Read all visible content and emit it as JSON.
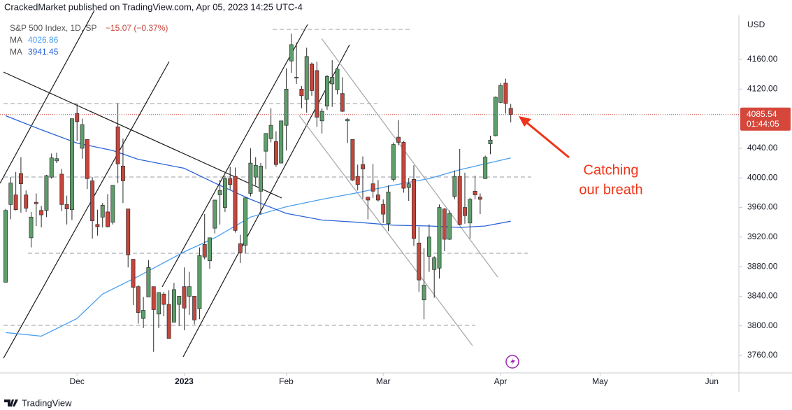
{
  "header": "CrackedMarket published on TradingView.com, Apr 05, 2023 14:25 UTC-4",
  "footer": "TradingView",
  "chart_data": {
    "type": "candlestick",
    "symbol": "S&P 500 Index, 1D, SP",
    "change": "−15.07 (−0.37%)",
    "currency": "USD",
    "last_price": 4085.54,
    "last_price_label": "4085.54",
    "countdown": "01:44:05",
    "annotation": [
      "Catching",
      "our breath"
    ],
    "up_color": "#5d9e6b",
    "down_color": "#c5463c",
    "xlim": [
      -1.1,
      143.7
    ],
    "xticks": [
      {
        "value": 14,
        "label": "Dec"
      },
      {
        "value": 35,
        "label": "2023",
        "bold": true
      },
      {
        "value": 55,
        "label": "Feb"
      },
      {
        "value": 74,
        "label": "Mar"
      },
      {
        "value": 97,
        "label": "Apr"
      },
      {
        "value": 116.5,
        "label": "May"
      },
      {
        "value": 138.4,
        "label": "Jun"
      }
    ],
    "ylim": [
      3736.4,
      4219.6
    ],
    "yticks": [
      {
        "value": 3760,
        "label": "3760.00"
      },
      {
        "value": 3800,
        "label": "3800.00"
      },
      {
        "value": 3840,
        "label": "3840.00"
      },
      {
        "value": 3880,
        "label": "3880.00"
      },
      {
        "value": 3920,
        "label": "3920.00"
      },
      {
        "value": 3960,
        "label": "3960.00"
      },
      {
        "value": 4000,
        "label": "4000.00"
      },
      {
        "value": 4040,
        "label": "4040.00"
      },
      {
        "value": 4120,
        "label": "4120.00"
      },
      {
        "value": 4160,
        "label": "4160.00"
      }
    ],
    "open": [
      3859,
      3964,
      3977,
      4006,
      3977,
      3919,
      3967,
      3956,
      3956,
      4001,
      4023,
      4005,
      3964,
      3957,
      4087,
      4040,
      4052,
      3996,
      3937,
      3947,
      3954,
      3940,
      4069,
      4016,
      3958,
      3890,
      3853,
      3810,
      3839,
      3853,
      3816,
      3843,
      3829,
      3805,
      3829,
      3853,
      3840,
      3840,
      3823,
      3910,
      3888,
      3932,
      3977,
      3960,
      3999,
      4002,
      3911,
      3909,
      3979,
      4001,
      3982,
      4036,
      4053,
      4049,
      4020,
      4071,
      4158,
      4136,
      4120,
      4106,
      4154,
      4145,
      4077,
      4097,
      4127,
      4119,
      4114,
      4077,
      4052,
      4002,
      4018,
      3974,
      3992,
      3977,
      3964,
      3938,
      3998,
      4055,
      4048,
      3987,
      3998,
      3912,
      3835,
      3894,
      3876,
      3878,
      3958,
      3917,
      3975,
      4002,
      3960,
      3939,
      3982,
      3974,
      3999,
      4046,
      4057,
      4102,
      4128,
      4094
    ],
    "high": [
      3958,
      4001,
      4008,
      4028,
      3983,
      3954,
      3979,
      3962,
      4004,
      4033,
      4034,
      4012,
      3976,
      4080,
      4100,
      4080,
      4052,
      4001,
      3957,
      3966,
      3978,
      3990,
      4101,
      4053,
      3958,
      3890,
      3855,
      3839,
      3889,
      3853,
      3845,
      3846,
      3848,
      3858,
      3840,
      3879,
      3873,
      3840,
      3906,
      3951,
      3919,
      3970,
      3997,
      4003,
      4015,
      4014,
      3923,
      3973,
      4040,
      4028,
      4020,
      4060,
      4094,
      4063,
      4077,
      4148,
      4195,
      4183,
      4124,
      4176,
      4156,
      4157,
      4094,
      4139,
      4159,
      4148,
      4136,
      4081,
      4052,
      4018,
      4029,
      3974,
      4019,
      3997,
      3971,
      3990,
      4048,
      4078,
      4050,
      4000,
      4017,
      3934,
      3905,
      3937,
      3894,
      3964,
      3959,
      3956,
      4010,
      4039,
      4007,
      3973,
      4003,
      3979,
      4030,
      4057,
      4110,
      4128,
      4134,
      4100
    ],
    "low": [
      3859,
      3944,
      3956,
      3953,
      3954,
      3906,
      3935,
      3933,
      3947,
      3999,
      4020,
      3955,
      3937,
      3943,
      4050,
      4026,
      3985,
      3918,
      3922,
      3933,
      3933,
      3937,
      3993,
      3966,
      3879,
      3828,
      3803,
      3797,
      3839,
      3765,
      3797,
      3813,
      3783,
      3805,
      3800,
      3794,
      3815,
      3802,
      3809,
      3890,
      3877,
      3925,
      3937,
      3954,
      3984,
      3926,
      3885,
      3898,
      3975,
      3990,
      3950,
      4012,
      4048,
      4015,
      4020,
      4037,
      4142,
      4127,
      4094,
      4088,
      4111,
      4069,
      4060,
      4092,
      4096,
      4113,
      4089,
      4047,
      3996,
      3983,
      3972,
      3944,
      3973,
      3968,
      3939,
      3928,
      3995,
      4044,
      3980,
      3969,
      3908,
      3846,
      3809,
      3873,
      3838,
      3864,
      3901,
      3916,
      3971,
      3936,
      3938,
      3918,
      3971,
      3951,
      3999,
      4032,
      4056,
      4101,
      4087,
      4075
    ],
    "close": [
      3956,
      3993,
      3957,
      3992,
      3959,
      3947,
      3965,
      3950,
      4003,
      4027,
      4026,
      3964,
      3958,
      4080,
      4076,
      4072,
      3999,
      3942,
      3934,
      3963,
      3934,
      3990,
      4019,
      3996,
      3896,
      3852,
      3818,
      3821,
      3879,
      3822,
      3845,
      3829,
      3783,
      3849,
      3840,
      3824,
      3853,
      3808,
      3895,
      3893,
      3919,
      3970,
      3983,
      3999,
      3991,
      3929,
      3899,
      3973,
      4020,
      4017,
      4016,
      4060,
      4071,
      4018,
      4077,
      4120,
      4180,
      4136,
      4111,
      4164,
      4118,
      4082,
      4090,
      4137,
      4136,
      4147,
      4090,
      4079,
      3997,
      3991,
      4012,
      3970,
      3982,
      3970,
      3951,
      3981,
      4045,
      4048,
      3986,
      3992,
      3918,
      3862,
      3855,
      3920,
      3892,
      3960,
      3917,
      3952,
      4002,
      3937,
      3949,
      3971,
      3977,
      3971,
      4028,
      4051,
      4109,
      4125,
      4100.6,
      4085.54
    ],
    "series": [
      {
        "name": "MA",
        "color": "#4a9ff0",
        "value_label": "4026.86",
        "x": [
          0,
          7,
          14,
          19,
          26,
          35,
          41,
          48,
          55,
          62,
          69,
          76,
          83,
          89,
          99
        ],
        "values": [
          3791,
          3786,
          3810,
          3843,
          3867,
          3900,
          3919,
          3947,
          3961,
          3971,
          3980,
          3990,
          3999,
          4011,
          4026.86
        ]
      },
      {
        "name": "MA",
        "color": "#2b64d8",
        "value_label": "3941.45",
        "x": [
          0,
          7,
          14,
          21,
          26,
          35,
          41,
          48,
          55,
          62,
          69,
          76,
          83,
          89,
          94,
          99
        ],
        "values": [
          4084,
          4065,
          4047,
          4037,
          4025,
          4013,
          3993,
          3971,
          3952,
          3943,
          3940,
          3936,
          3935,
          3933,
          3935,
          3941.45
        ]
      }
    ]
  }
}
